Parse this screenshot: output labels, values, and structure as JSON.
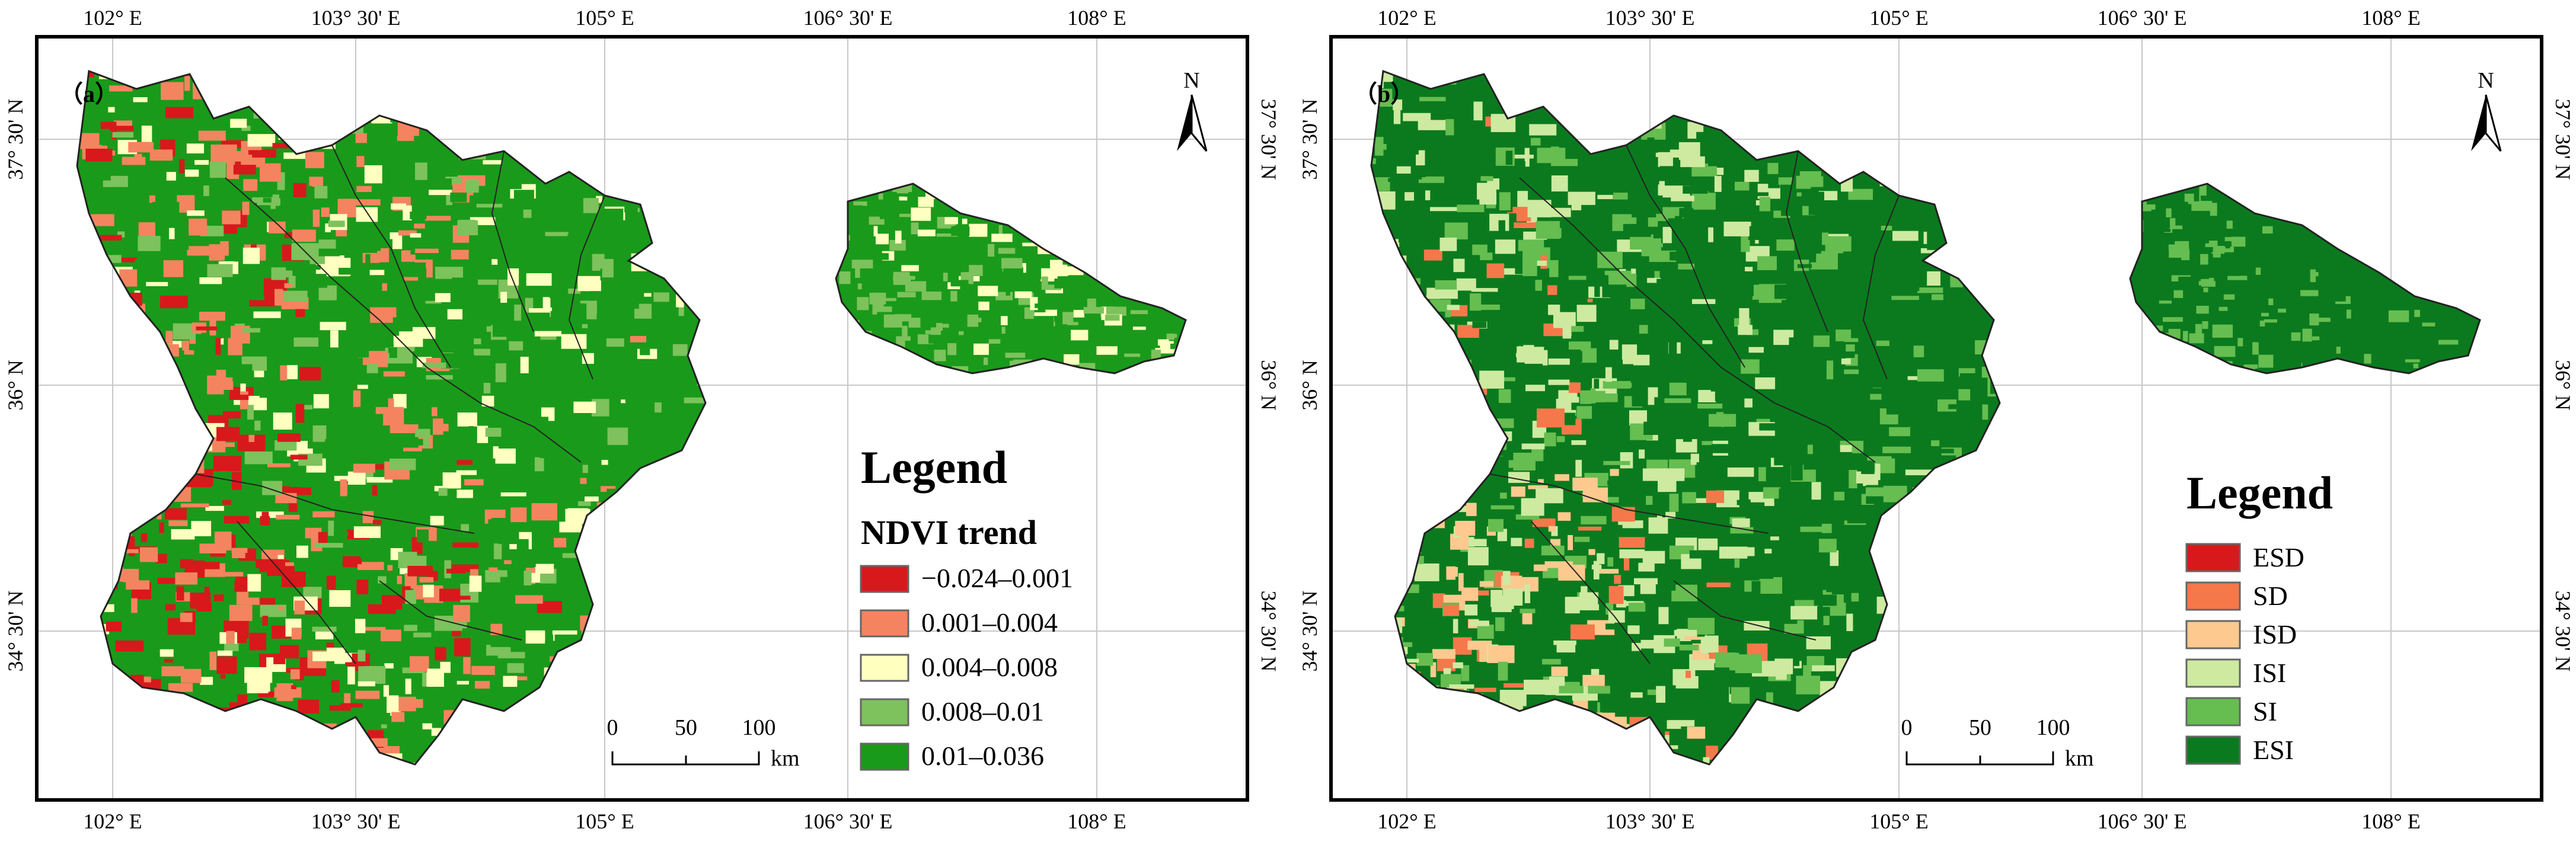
{
  "colors": {
    "frame": "#000000",
    "grid": "#c8c8c8",
    "boundary": "#222222"
  },
  "panel_a": {
    "label": "（a）",
    "lon_labels": [
      "102° E",
      "103° 30' E",
      "105° E",
      "106° 30' E",
      "108° E"
    ],
    "lat_labels": [
      "37° 30' N",
      "36° N",
      "34° 30' N"
    ],
    "north": "N",
    "scale": {
      "ticks": [
        "0",
        "50",
        "100"
      ],
      "unit": "km"
    },
    "legend": {
      "title": "Legend",
      "subtitle": "NDVI trend",
      "items": [
        {
          "label": "−0.024–0.001",
          "color": "#d7191c"
        },
        {
          "label": "0.001–0.004",
          "color": "#f4845f"
        },
        {
          "label": "0.004–0.008",
          "color": "#ffffc0"
        },
        {
          "label": "0.008–0.01",
          "color": "#7dc25c"
        },
        {
          "label": "0.01–0.036",
          "color": "#1a9a1a"
        }
      ]
    },
    "fill_colors": [
      "#1a9a1a",
      "#7dc25c",
      "#ffffc0",
      "#f4845f",
      "#d7191c"
    ]
  },
  "panel_b": {
    "label": "（b）",
    "lon_labels": [
      "102° E",
      "103° 30' E",
      "105° E",
      "106° 30' E",
      "108° E"
    ],
    "lat_labels": [
      "37° 30' N",
      "36° N",
      "34° 30' N"
    ],
    "north": "N",
    "scale": {
      "ticks": [
        "0",
        "50",
        "100"
      ],
      "unit": "km"
    },
    "legend": {
      "title": "Legend",
      "items": [
        {
          "label": "ESD",
          "color": "#d7191c"
        },
        {
          "label": "SD",
          "color": "#f4784a"
        },
        {
          "label": "ISD",
          "color": "#fdc98f"
        },
        {
          "label": "ISI",
          "color": "#cdeaa0"
        },
        {
          "label": "SI",
          "color": "#66bd50"
        },
        {
          "label": "ESI",
          "color": "#0b7a1e"
        }
      ]
    },
    "fill_colors": [
      "#0b7a1e",
      "#66bd50",
      "#cdeaa0",
      "#fdc98f",
      "#f4784a",
      "#d7191c"
    ]
  }
}
